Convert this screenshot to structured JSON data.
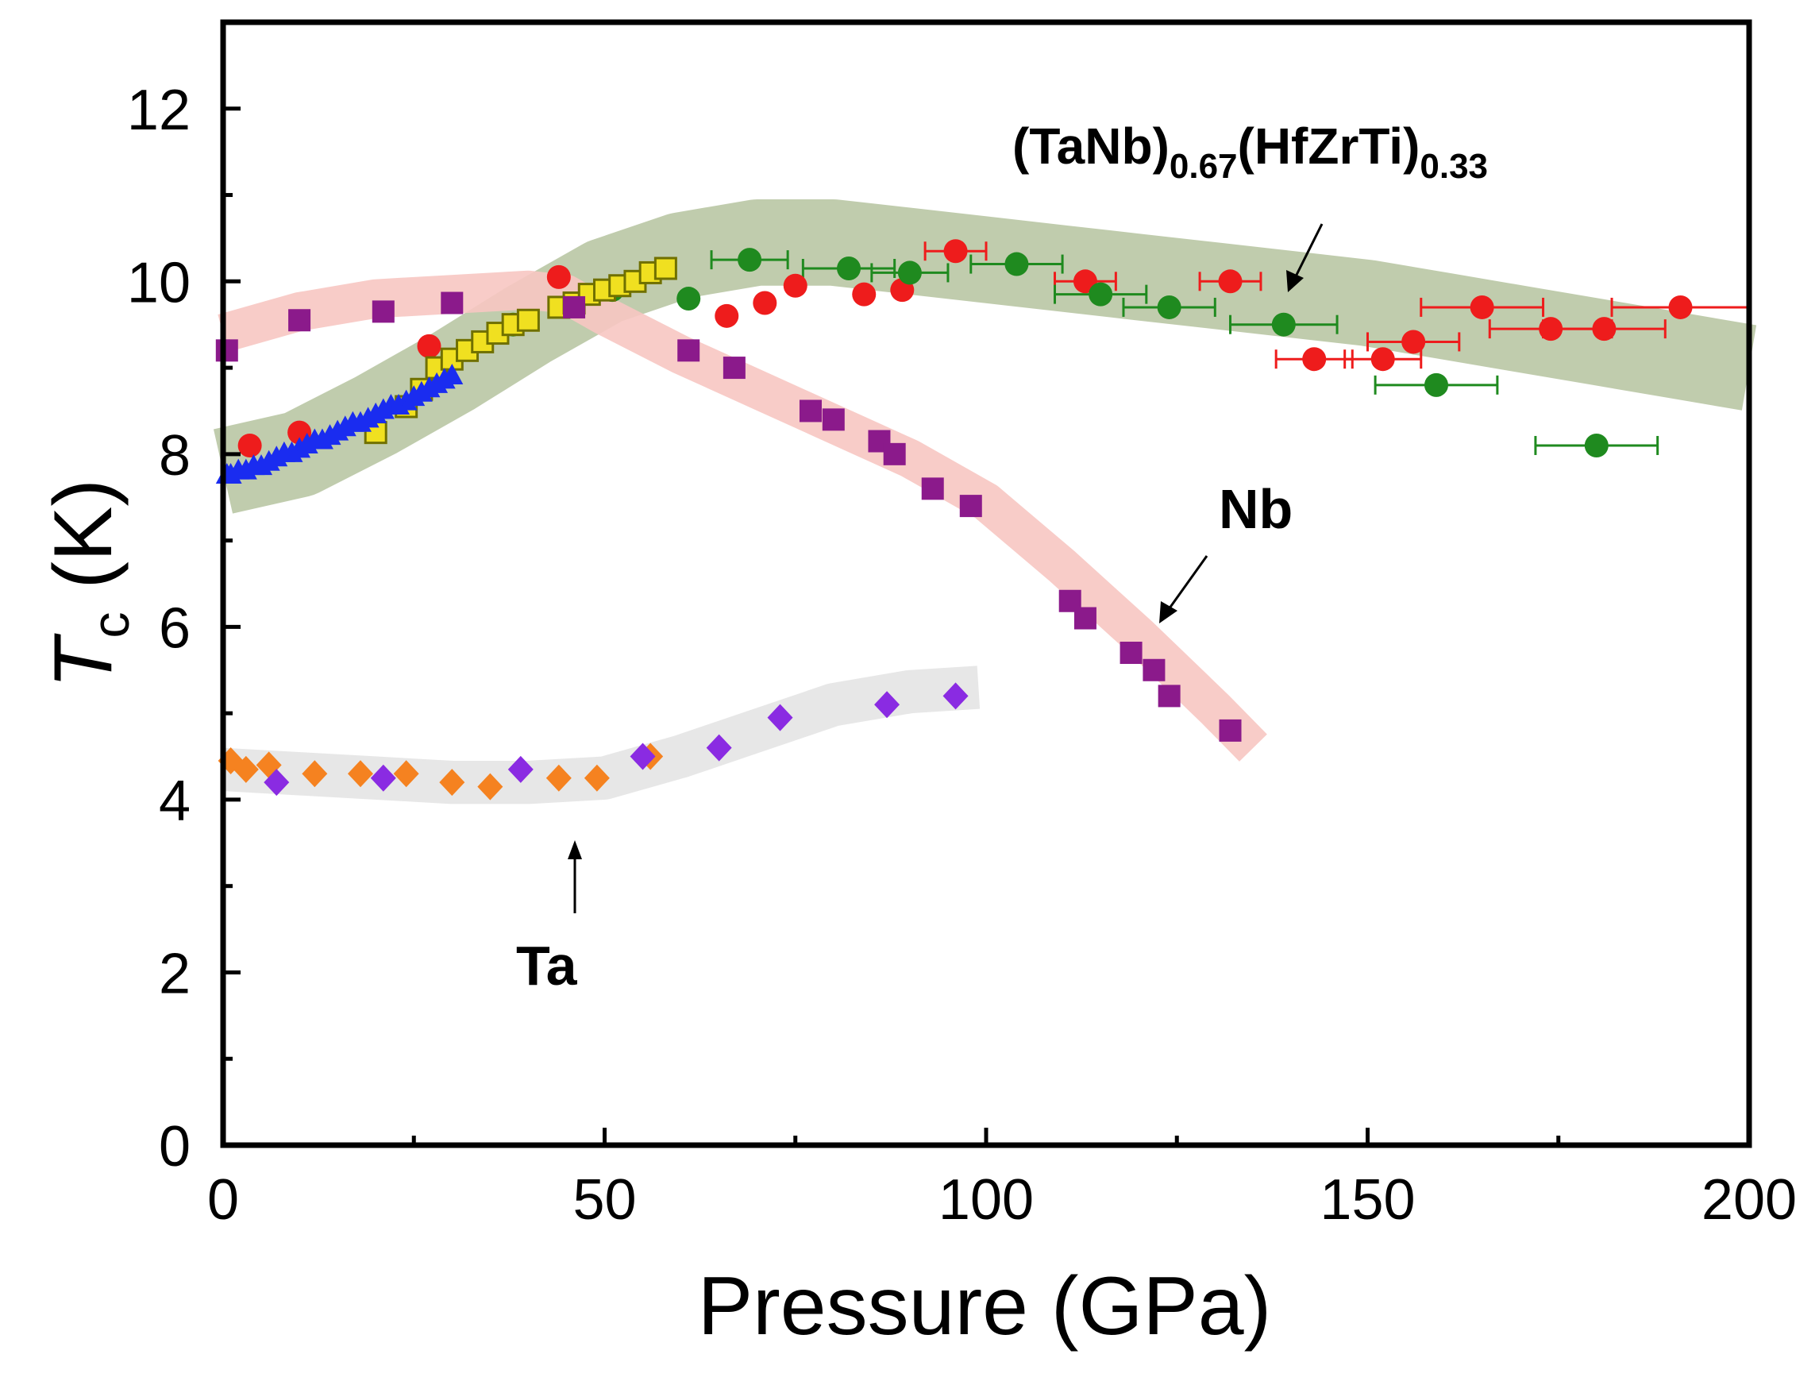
{
  "chart_data": {
    "type": "scatter",
    "xlabel": "Pressure (GPa)",
    "ylabel_main": "T",
    "ylabel_sub": "c",
    "ylabel_unit": " (K)",
    "xlim": [
      0,
      200
    ],
    "ylim": [
      0,
      13
    ],
    "x_ticks": [
      0,
      50,
      100,
      150,
      200
    ],
    "x_tick_labels": [
      "0",
      "50",
      "100",
      "150",
      "200"
    ],
    "y_ticks": [
      0,
      2,
      4,
      6,
      8,
      10,
      12
    ],
    "y_tick_labels": [
      "0",
      "2",
      "4",
      "6",
      "8",
      "10",
      "12"
    ],
    "grid": false,
    "annotations": {
      "hea_main": "(TaNb)",
      "hea_sub1": "0.67",
      "hea_mid": "(HfZrTi)",
      "hea_sub2": "0.33",
      "nb": "Nb",
      "ta": "Ta"
    },
    "bands": [
      {
        "name": "HEA trend",
        "color": "#b9c7a4",
        "width": 1.0,
        "points": [
          [
            0,
            7.8
          ],
          [
            10,
            8.0
          ],
          [
            20,
            8.45
          ],
          [
            30,
            8.95
          ],
          [
            40,
            9.5
          ],
          [
            50,
            10.0
          ],
          [
            60,
            10.3
          ],
          [
            70,
            10.45
          ],
          [
            80,
            10.45
          ],
          [
            90,
            10.35
          ],
          [
            100,
            10.25
          ],
          [
            110,
            10.15
          ],
          [
            120,
            10.05
          ],
          [
            130,
            9.95
          ],
          [
            140,
            9.85
          ],
          [
            150,
            9.75
          ],
          [
            160,
            9.6
          ],
          [
            170,
            9.45
          ],
          [
            180,
            9.3
          ],
          [
            190,
            9.15
          ],
          [
            200,
            9.0
          ]
        ]
      },
      {
        "name": "Nb trend",
        "color": "#f7c7c2",
        "width": 0.45,
        "points": [
          [
            0,
            9.4
          ],
          [
            10,
            9.65
          ],
          [
            20,
            9.8
          ],
          [
            30,
            9.85
          ],
          [
            40,
            9.9
          ],
          [
            45,
            9.85
          ],
          [
            50,
            9.6
          ],
          [
            60,
            9.15
          ],
          [
            70,
            8.75
          ],
          [
            80,
            8.35
          ],
          [
            90,
            7.95
          ],
          [
            100,
            7.45
          ],
          [
            110,
            6.7
          ],
          [
            120,
            5.9
          ],
          [
            130,
            5.05
          ],
          [
            135,
            4.6
          ]
        ]
      },
      {
        "name": "Ta trend",
        "color": "#e4e4e4",
        "width": 0.5,
        "points": [
          [
            0,
            4.35
          ],
          [
            10,
            4.3
          ],
          [
            20,
            4.25
          ],
          [
            30,
            4.2
          ],
          [
            40,
            4.2
          ],
          [
            50,
            4.25
          ],
          [
            60,
            4.5
          ],
          [
            70,
            4.8
          ],
          [
            80,
            5.1
          ],
          [
            90,
            5.25
          ],
          [
            99,
            5.3
          ]
        ]
      }
    ],
    "series": [
      {
        "name": "HEA (red circles)",
        "marker": "circle",
        "color": "#ee1c1c",
        "x": [
          3.5,
          10,
          27,
          44,
          66,
          71,
          75,
          84,
          89,
          96,
          113,
          132,
          143,
          152,
          156,
          165,
          174,
          181,
          191
        ],
        "y": [
          8.1,
          8.25,
          9.25,
          10.05,
          9.6,
          9.75,
          9.95,
          9.85,
          9.9,
          10.35,
          10.0,
          10.0,
          9.1,
          9.1,
          9.3,
          9.7,
          9.45,
          9.45,
          9.7
        ],
        "xerr": [
          0,
          0,
          0,
          0,
          0,
          0,
          0,
          0,
          0,
          4,
          4,
          4,
          5,
          5,
          6,
          8,
          8,
          8,
          9
        ]
      },
      {
        "name": "HEA (green circles)",
        "marker": "circle",
        "color": "#1f8a1f",
        "x": [
          38,
          51,
          61,
          69,
          82,
          90,
          104,
          115,
          124,
          139,
          159,
          180
        ],
        "y": [
          9.5,
          9.9,
          9.8,
          10.25,
          10.15,
          10.1,
          10.2,
          9.85,
          9.7,
          9.5,
          8.8,
          8.1
        ],
        "xerr": [
          0,
          0,
          0,
          5,
          6,
          5,
          6,
          6,
          6,
          7,
          8,
          8
        ]
      },
      {
        "name": "HEA (yellow squares)",
        "marker": "square-open",
        "color": "#f0e020",
        "edge": "#707000",
        "x": [
          20,
          24,
          26,
          28,
          30,
          32,
          34,
          36,
          38,
          40,
          44,
          46,
          48,
          50,
          52,
          54,
          56,
          58
        ],
        "y": [
          8.25,
          8.55,
          8.75,
          9.0,
          9.1,
          9.2,
          9.3,
          9.4,
          9.5,
          9.55,
          9.7,
          9.75,
          9.85,
          9.9,
          9.95,
          10.0,
          10.1,
          10.15
        ]
      },
      {
        "name": "HEA (blue triangles)",
        "marker": "triangle",
        "color": "#1a2cf0",
        "x": [
          0.5,
          1,
          2,
          3,
          4,
          5,
          6,
          7,
          8,
          9,
          10,
          11,
          12,
          13,
          14,
          15,
          16,
          17,
          18,
          19,
          20,
          21,
          22,
          23,
          24,
          25,
          26,
          27,
          28,
          29,
          30
        ],
        "y": [
          7.75,
          7.75,
          7.8,
          7.8,
          7.85,
          7.85,
          7.9,
          7.95,
          8.0,
          8.0,
          8.05,
          8.1,
          8.15,
          8.15,
          8.2,
          8.25,
          8.3,
          8.35,
          8.35,
          8.4,
          8.45,
          8.5,
          8.55,
          8.55,
          8.6,
          8.65,
          8.7,
          8.75,
          8.8,
          8.85,
          8.9
        ]
      },
      {
        "name": "Nb",
        "marker": "square",
        "color": "#8b1a8b",
        "x": [
          0.5,
          10,
          21,
          30,
          46,
          61,
          67,
          77,
          80,
          86,
          88,
          93,
          98,
          111,
          113,
          119,
          122,
          124,
          132
        ],
        "y": [
          9.2,
          9.55,
          9.65,
          9.75,
          9.7,
          9.2,
          9.0,
          8.5,
          8.4,
          8.15,
          8.0,
          7.6,
          7.4,
          6.3,
          6.1,
          5.7,
          5.5,
          5.2,
          4.8
        ]
      },
      {
        "name": "Ta (orange)",
        "marker": "diamond",
        "color": "#f58220",
        "x": [
          1,
          3,
          6,
          12,
          18,
          24,
          30,
          35,
          44,
          49,
          56
        ],
        "y": [
          4.45,
          4.35,
          4.4,
          4.3,
          4.3,
          4.3,
          4.2,
          4.15,
          4.25,
          4.25,
          4.5
        ]
      },
      {
        "name": "Ta (violet)",
        "marker": "diamond",
        "color": "#8a2be2",
        "x": [
          7,
          21,
          39,
          55,
          65,
          73,
          87,
          96
        ],
        "y": [
          4.2,
          4.25,
          4.35,
          4.5,
          4.6,
          4.95,
          5.1,
          5.2
        ]
      }
    ]
  }
}
